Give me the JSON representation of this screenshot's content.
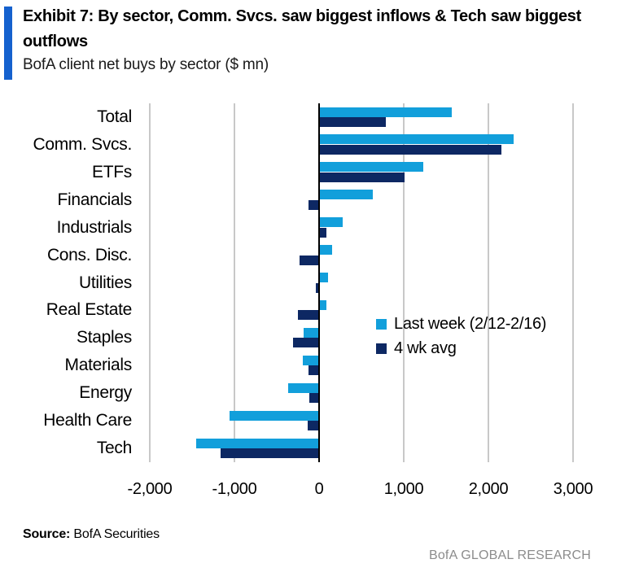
{
  "header": {
    "exhibit_title": "Exhibit 7: By sector, Comm. Svcs. saw biggest inflows & Tech saw biggest outflows",
    "subtitle": "BofA client net buys by sector ($ mn)"
  },
  "chart_data": {
    "type": "bar",
    "orientation": "horizontal",
    "title": "BofA client net buys by sector ($ mn)",
    "categories": [
      "Total",
      "Comm. Svcs.",
      "ETFs",
      "Financials",
      "Industrials",
      "Cons. Disc.",
      "Utilities",
      "Real Estate",
      "Staples",
      "Materials",
      "Energy",
      "Health Care",
      "Tech"
    ],
    "series": [
      {
        "name": "Last week (2/12-2/16)",
        "values": [
          1570,
          2300,
          1235,
          635,
          275,
          150,
          110,
          90,
          -185,
          -195,
          -365,
          -1055,
          -1450
        ]
      },
      {
        "name": "4 wk avg",
        "values": [
          785,
          2150,
          1010,
          -125,
          85,
          -230,
          -40,
          -250,
          -310,
          -125,
          -120,
          -130,
          -1165
        ]
      }
    ],
    "xlim": [
      -2000,
      3000
    ],
    "x_ticks": [
      -2000,
      -1000,
      0,
      1000,
      2000,
      3000
    ],
    "x_tick_labels": [
      "-2,000",
      "-1,000",
      "0",
      "1,000",
      "2,000",
      "3,000"
    ],
    "grid": "vertical",
    "legend_position": "middle-right",
    "xlabel": "",
    "ylabel": ""
  },
  "legend": {
    "items": [
      {
        "label": "Last week (2/12-2/16)",
        "color": "#129FDB"
      },
      {
        "label": "4 wk avg",
        "color": "#0D2863"
      }
    ]
  },
  "footer": {
    "source_label": "Source:",
    "source_value": " BofA Securities",
    "brand": "BofA GLOBAL RESEARCH"
  },
  "colors": {
    "series_light_blue": "#129FDB",
    "series_navy": "#0D2863",
    "title_accent": "#1561CE",
    "gridline": "#C8C8C8",
    "zero_axis": "#000000",
    "brand_gray": "#8C8C8C"
  }
}
